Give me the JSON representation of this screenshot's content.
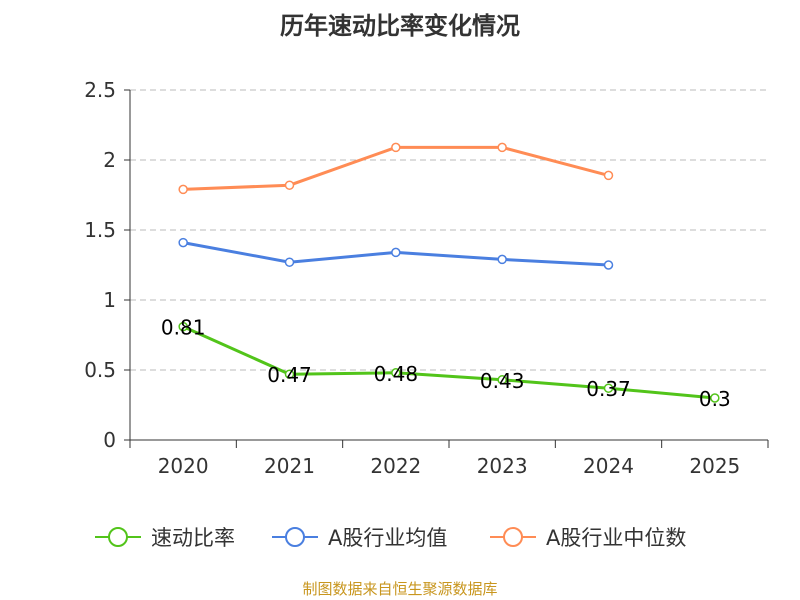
{
  "chart_data": {
    "type": "line",
    "title": "历年速动比率变化情况",
    "categories": [
      "2020",
      "2021",
      "2022",
      "2023",
      "2024",
      "2025"
    ],
    "ylim": [
      0,
      2.5
    ],
    "yticks": [
      "0",
      "0.5",
      "1",
      "1.5",
      "2",
      "2.5"
    ],
    "ytick_values": [
      0,
      0.5,
      1,
      1.5,
      2,
      2.5
    ],
    "grid": true,
    "legend_position": "bottom",
    "series": [
      {
        "name": "速动比率",
        "color": "#52c41a",
        "values": [
          0.81,
          0.47,
          0.48,
          0.43,
          0.37,
          0.3
        ],
        "labels": [
          "0.81",
          "0.47",
          "0.48",
          "0.43",
          "0.37",
          "0.3"
        ]
      },
      {
        "name": "A股行业均值",
        "color": "#4a7fe0",
        "values": [
          1.41,
          1.27,
          1.34,
          1.29,
          1.25,
          null
        ]
      },
      {
        "name": "A股行业中位数",
        "color": "#ff8c55",
        "values": [
          1.79,
          1.82,
          2.09,
          2.09,
          1.89,
          null
        ]
      }
    ]
  },
  "footer": "制图数据来自恒生聚源数据库"
}
